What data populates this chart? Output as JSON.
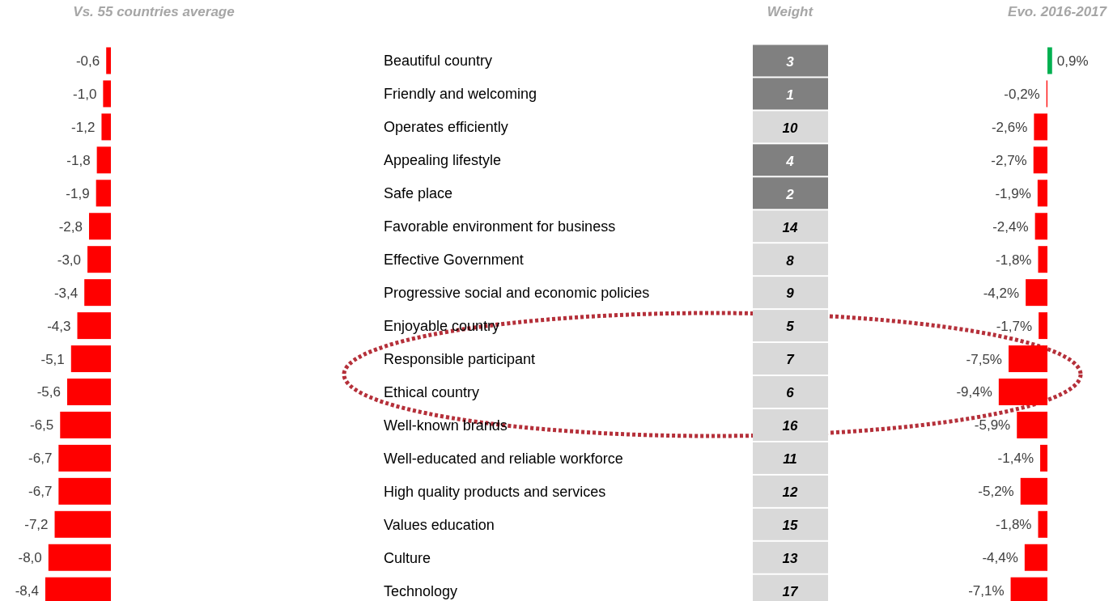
{
  "chart_data": [
    {
      "type": "bar",
      "orientation": "horizontal",
      "title": "Vs. 55 countries average",
      "categories": [
        "Beautiful country",
        "Friendly and welcoming",
        "Operates efficiently",
        "Appealing lifestyle",
        "Safe place",
        "Favorable environment for business",
        "Effective Government",
        "Progressive social and economic policies",
        "Enjoyable country",
        "Responsible participant",
        "Ethical country",
        "Well-known brands",
        "Well-educated and reliable workforce",
        "High quality products and services",
        "Values education",
        "Culture",
        "Technology"
      ],
      "values": [
        -0.6,
        -1.0,
        -1.2,
        -1.8,
        -1.9,
        -2.8,
        -3.0,
        -3.4,
        -4.3,
        -5.1,
        -5.6,
        -6.5,
        -6.7,
        -6.7,
        -7.2,
        -8.0,
        -8.4
      ],
      "value_labels": [
        "-0,6",
        "-1,0",
        "-1,2",
        "-1,8",
        "-1,9",
        "-2,8",
        "-3,0",
        "-3,4",
        "-4,3",
        "-5,1",
        "-5,6",
        "-6,5",
        "-6,7",
        "-6,7",
        "-7,2",
        "-8,0",
        "-8,4"
      ],
      "color": "#ff0000"
    },
    {
      "type": "other",
      "title": "Weight",
      "data_labels": true,
      "values": [
        3,
        1,
        10,
        4,
        2,
        14,
        8,
        9,
        5,
        7,
        6,
        16,
        11,
        12,
        15,
        13,
        17
      ],
      "colors": [
        "#808080",
        "#808080",
        "#d9d9d9",
        "#808080",
        "#808080",
        "#d9d9d9",
        "#d9d9d9",
        "#d9d9d9",
        "#d9d9d9",
        "#d9d9d9",
        "#d9d9d9",
        "#d9d9d9",
        "#d9d9d9",
        "#d9d9d9",
        "#d9d9d9",
        "#d9d9d9",
        "#d9d9d9"
      ]
    },
    {
      "type": "bar",
      "orientation": "horizontal",
      "title": "Evo. 2016-2017",
      "categories": [
        null,
        null,
        null,
        null,
        null,
        null,
        null,
        null,
        null,
        null,
        null,
        null,
        null,
        null,
        null,
        null,
        null
      ],
      "values": [
        0.9,
        -0.2,
        -2.6,
        -2.7,
        -1.9,
        -2.4,
        -1.8,
        -4.2,
        -1.7,
        -7.5,
        -9.4,
        -5.9,
        -1.4,
        -5.2,
        -1.8,
        -4.4,
        -7.1
      ],
      "value_labels": [
        "0,9%",
        "-0,2%",
        "-2,6%",
        "-2,7%",
        "-1,9%",
        "-2,4%",
        "-1,8%",
        "-4,2%",
        "-1,7%",
        "-7,5%",
        "-9,4%",
        "-5,9%",
        "-1,4%",
        "-5,2%",
        "-1,8%",
        "-4,4%",
        "-7,1%"
      ],
      "colors": [
        "#00b050",
        "#ff0000",
        "#ff0000",
        "#ff0000",
        "#ff0000",
        "#ff0000",
        "#ff0000",
        "#ff0000",
        "#ff0000",
        "#ff0000",
        "#ff0000",
        "#ff0000",
        "#ff0000",
        "#ff0000",
        "#ff0000",
        "#ff0000",
        "#ff0000"
      ]
    }
  ]
}
